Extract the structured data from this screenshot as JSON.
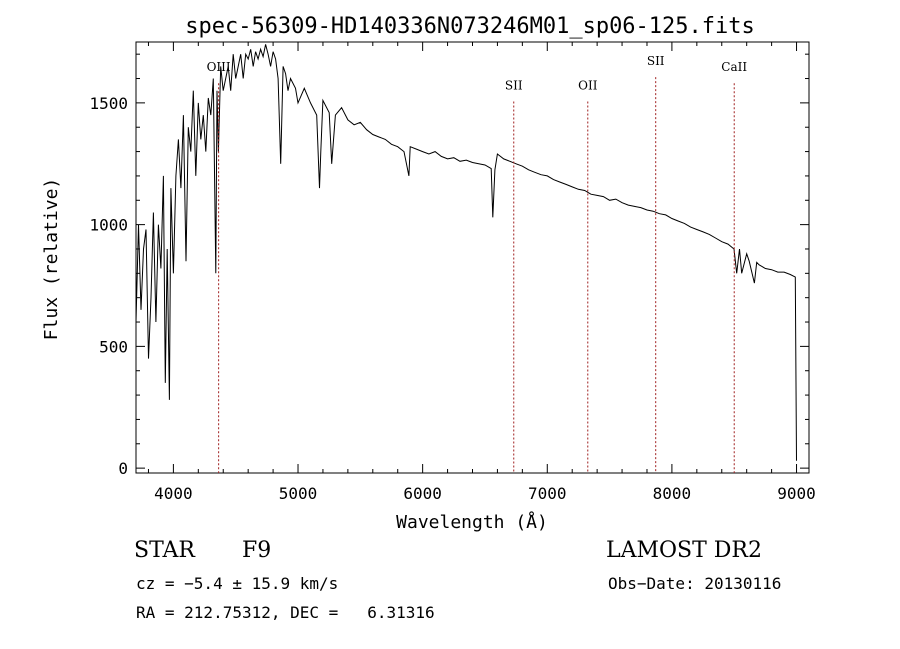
{
  "chart_data": {
    "type": "line",
    "title": "spec-56309-HD140336N073246M01_sp06-125.fits",
    "xlabel": "Wavelength (Å)",
    "ylabel": "Flux (relative)",
    "xlim": [
      3700,
      9100
    ],
    "ylim": [
      -20,
      1750
    ],
    "xticks": [
      4000,
      5000,
      6000,
      7000,
      8000,
      9000
    ],
    "yticks": [
      0,
      500,
      1000,
      1500
    ],
    "grid": false,
    "series": [
      {
        "color": "#000000",
        "x": [
          3700,
          3720,
          3740,
          3760,
          3780,
          3800,
          3820,
          3840,
          3860,
          3880,
          3900,
          3920,
          3935,
          3950,
          3968,
          3980,
          4000,
          4020,
          4040,
          4060,
          4080,
          4101,
          4120,
          4140,
          4160,
          4180,
          4200,
          4220,
          4240,
          4260,
          4280,
          4300,
          4320,
          4340,
          4350,
          4361,
          4380,
          4400,
          4420,
          4440,
          4460,
          4480,
          4500,
          4520,
          4540,
          4560,
          4580,
          4600,
          4620,
          4640,
          4660,
          4680,
          4700,
          4720,
          4740,
          4760,
          4780,
          4800,
          4820,
          4840,
          4861,
          4880,
          4900,
          4920,
          4940,
          4960,
          4980,
          5000,
          5050,
          5100,
          5150,
          5172,
          5183,
          5200,
          5250,
          5270,
          5300,
          5350,
          5400,
          5450,
          5500,
          5550,
          5600,
          5650,
          5700,
          5750,
          5800,
          5850,
          5890,
          5900,
          5950,
          6000,
          6050,
          6100,
          6150,
          6200,
          6250,
          6300,
          6350,
          6400,
          6450,
          6500,
          6550,
          6563,
          6580,
          6600,
          6650,
          6700,
          6750,
          6800,
          6850,
          6900,
          6950,
          7000,
          7050,
          7100,
          7150,
          7200,
          7250,
          7300,
          7350,
          7400,
          7450,
          7500,
          7550,
          7600,
          7650,
          7700,
          7750,
          7800,
          7850,
          7900,
          7950,
          8000,
          8050,
          8100,
          8150,
          8200,
          8250,
          8300,
          8350,
          8400,
          8450,
          8498,
          8520,
          8542,
          8560,
          8600,
          8620,
          8662,
          8680,
          8700,
          8750,
          8800,
          8850,
          8900,
          8950,
          8990,
          9000
        ],
        "y": [
          600,
          1000,
          650,
          900,
          980,
          450,
          700,
          1050,
          600,
          1000,
          820,
          1200,
          350,
          900,
          280,
          1150,
          800,
          1200,
          1350,
          1150,
          1450,
          850,
          1400,
          1300,
          1550,
          1200,
          1500,
          1350,
          1450,
          1300,
          1520,
          1450,
          1600,
          800,
          1550,
          1300,
          1650,
          1550,
          1600,
          1650,
          1550,
          1700,
          1600,
          1650,
          1700,
          1600,
          1700,
          1680,
          1720,
          1650,
          1710,
          1680,
          1720,
          1690,
          1740,
          1700,
          1650,
          1710,
          1680,
          1600,
          1250,
          1650,
          1620,
          1550,
          1600,
          1580,
          1560,
          1500,
          1560,
          1500,
          1450,
          1150,
          1300,
          1510,
          1460,
          1250,
          1450,
          1480,
          1430,
          1410,
          1420,
          1390,
          1370,
          1360,
          1350,
          1330,
          1320,
          1300,
          1200,
          1320,
          1310,
          1300,
          1290,
          1300,
          1280,
          1270,
          1275,
          1260,
          1265,
          1255,
          1250,
          1245,
          1230,
          1030,
          1225,
          1290,
          1270,
          1260,
          1250,
          1240,
          1225,
          1215,
          1205,
          1200,
          1185,
          1175,
          1165,
          1155,
          1145,
          1140,
          1125,
          1120,
          1115,
          1100,
          1105,
          1090,
          1080,
          1075,
          1070,
          1060,
          1055,
          1045,
          1040,
          1025,
          1015,
          1005,
          990,
          980,
          970,
          960,
          945,
          930,
          920,
          900,
          800,
          900,
          800,
          880,
          850,
          760,
          845,
          835,
          820,
          815,
          805,
          805,
          795,
          785,
          30
        ]
      }
    ],
    "annotations": [
      {
        "label": "OIII",
        "x": 4363,
        "label_y": 1630
      },
      {
        "label": "SII",
        "x": 6731,
        "label_y": 1555
      },
      {
        "label": "OII",
        "x": 7325,
        "label_y": 1555
      },
      {
        "label": "SII",
        "x": 7870,
        "label_y": 1655
      },
      {
        "label": "CaII",
        "x": 8500,
        "label_y": 1630
      }
    ],
    "annotation_color": "#a02020"
  },
  "info": {
    "object_class": "STAR",
    "subclass": "F9",
    "survey": "LAMOST DR2",
    "cz": "cz = −5.4 ± 15.9 km/s",
    "obs_date": "Obs−Date: 20130116",
    "coords": "RA = 212.75312, DEC =   6.31316"
  }
}
